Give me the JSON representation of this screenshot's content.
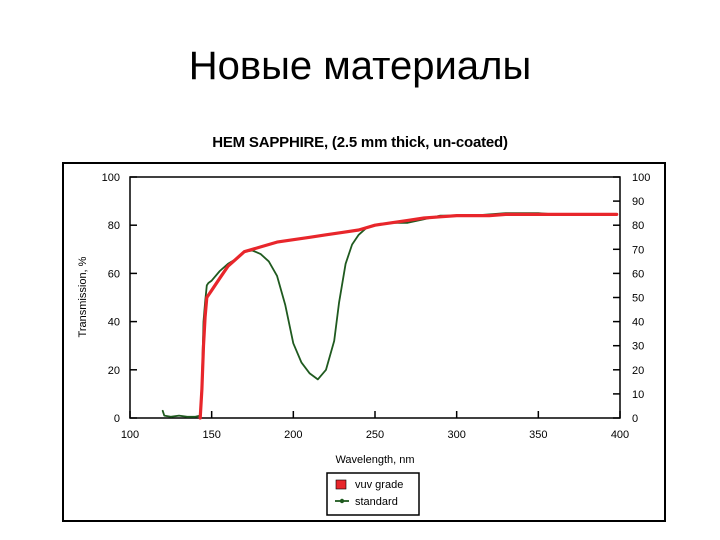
{
  "slide": {
    "title": "Новые материалы"
  },
  "colors": {
    "vuv_grade": "#e8262b",
    "standard": "#1f5a1f",
    "axis": "#000000",
    "background": "#ffffff"
  },
  "chart_data": {
    "type": "line",
    "title": "HEM SAPPHIRE, (2.5 mm thick, un-coated)",
    "xlabel": "Wavelength, nm",
    "ylabel": "Transmission, %",
    "xlim": [
      100,
      400
    ],
    "ylim": [
      0,
      100
    ],
    "x_ticks": [
      100,
      150,
      200,
      250,
      300,
      350,
      400
    ],
    "y_ticks_left": [
      0,
      20,
      40,
      60,
      80,
      100
    ],
    "y_ticks_right": [
      0,
      10,
      20,
      30,
      40,
      50,
      60,
      70,
      80,
      90,
      100
    ],
    "grid": false,
    "legend_position": "bottom",
    "series": [
      {
        "name": "vuv grade",
        "color": "#e8262b",
        "x": [
          143,
          144,
          145,
          146,
          147,
          150,
          155,
          160,
          165,
          170,
          175,
          180,
          190,
          200,
          210,
          220,
          230,
          240,
          250,
          260,
          270,
          280,
          290,
          300,
          310,
          320,
          330,
          340,
          350,
          360,
          370,
          380,
          390,
          398
        ],
        "y": [
          0,
          12,
          30,
          42,
          50,
          53,
          58,
          63,
          66,
          69,
          70,
          71,
          73,
          74,
          75,
          76,
          77,
          78,
          80,
          81,
          82,
          83,
          83.5,
          84,
          84,
          84,
          84.5,
          84.5,
          84.5,
          84.5,
          84.5,
          84.5,
          84.5,
          84.5
        ]
      },
      {
        "name": "standard",
        "color": "#1f5a1f",
        "x": [
          120,
          121,
          125,
          130,
          135,
          140,
          143,
          144,
          145,
          146,
          147,
          148,
          150,
          155,
          160,
          165,
          170,
          175,
          180,
          185,
          190,
          195,
          200,
          205,
          210,
          215,
          220,
          225,
          228,
          232,
          236,
          240,
          245,
          250,
          260,
          270,
          280,
          290,
          300,
          310,
          320,
          330,
          340,
          350,
          360,
          370,
          380
        ],
        "y": [
          3,
          1,
          0.5,
          1,
          0.5,
          0.5,
          1,
          15,
          40,
          48,
          55,
          56,
          57,
          61,
          64,
          66,
          69,
          69.5,
          68,
          65,
          59,
          47,
          31,
          23,
          18.5,
          16,
          20,
          32,
          48,
          64,
          72,
          76,
          79,
          80,
          81,
          81,
          82.5,
          84,
          84,
          84,
          84.5,
          85,
          85,
          85,
          84.5,
          84.5,
          84.5
        ]
      }
    ]
  }
}
